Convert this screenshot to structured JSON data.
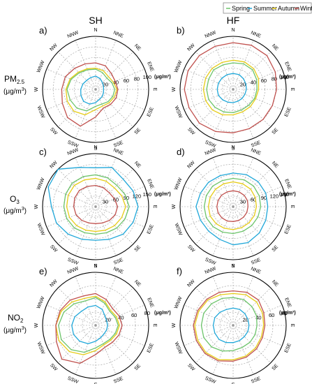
{
  "legend": [
    "Spring",
    "Summer",
    "Autumn",
    "Winter"
  ],
  "colors": {
    "Spring": "#6cc46a",
    "Summer": "#1fa7d9",
    "Autumn": "#e6cc16",
    "Winter": "#c0504d",
    "grid": "#9a9a9a",
    "frame": "#000000"
  },
  "columns": [
    "SH",
    "HF"
  ],
  "rows": [
    {
      "base": "PM",
      "sub": "2.5",
      "unit_lead": "(μg/m",
      "unit_sup": "3",
      "unit_tail": ")"
    },
    {
      "base": "O",
      "sub": "3",
      "unit_lead": "(μg/m",
      "unit_sup": "3",
      "unit_tail": ")"
    },
    {
      "base": "NO",
      "sub": "2",
      "unit_lead": "(μg/m",
      "unit_sup": "3",
      "unit_tail": ")"
    }
  ],
  "chart_data": [
    {
      "panel": "a)",
      "type": "polar-line",
      "city": "SH",
      "pollutant": "PM2.5",
      "directions": [
        "N",
        "NNE",
        "NE",
        "ENE",
        "E",
        "ESE",
        "SE",
        "SSE",
        "S",
        "SSW",
        "SW",
        "WSW",
        "W",
        "WNW",
        "NW",
        "NNW"
      ],
      "rmax": 100,
      "rticks": [
        20,
        40,
        60,
        80,
        100
      ],
      "unit_label": "(μg/m³)",
      "series": [
        {
          "name": "Spring",
          "values": [
            38,
            34,
            30,
            33,
            36,
            35,
            33,
            30,
            32,
            44,
            50,
            52,
            54,
            50,
            44,
            40
          ]
        },
        {
          "name": "Summer",
          "values": [
            25,
            22,
            18,
            16,
            15,
            16,
            18,
            20,
            25,
            30,
            32,
            30,
            28,
            26,
            24,
            24
          ]
        },
        {
          "name": "Autumn",
          "values": [
            40,
            38,
            34,
            36,
            40,
            38,
            36,
            34,
            38,
            52,
            58,
            58,
            56,
            52,
            46,
            42
          ]
        },
        {
          "name": "Winter",
          "values": [
            50,
            48,
            42,
            40,
            42,
            42,
            40,
            38,
            52,
            75,
            75,
            68,
            64,
            62,
            56,
            52
          ]
        }
      ]
    },
    {
      "panel": "b)",
      "type": "polar-line",
      "city": "HF",
      "pollutant": "PM2.5",
      "directions": [
        "N",
        "NNE",
        "NE",
        "ENE",
        "E",
        "ESE",
        "SE",
        "SSE",
        "S",
        "SSW",
        "SW",
        "WSW",
        "W",
        "WNW",
        "NW",
        "NNW"
      ],
      "rmax": 100,
      "rticks": [
        20,
        40,
        60,
        80,
        100
      ],
      "unit_label": "(μg/m³)",
      "series": [
        {
          "name": "Spring",
          "values": [
            50,
            52,
            52,
            48,
            45,
            44,
            42,
            42,
            44,
            46,
            48,
            50,
            50,
            50,
            52,
            50
          ]
        },
        {
          "name": "Summer",
          "values": [
            30,
            30,
            28,
            26,
            25,
            24,
            24,
            24,
            25,
            26,
            28,
            30,
            30,
            30,
            30,
            30
          ]
        },
        {
          "name": "Autumn",
          "values": [
            55,
            56,
            55,
            52,
            48,
            46,
            46,
            46,
            48,
            52,
            55,
            56,
            56,
            56,
            56,
            55
          ]
        },
        {
          "name": "Winter",
          "values": [
            88,
            90,
            90,
            86,
            82,
            80,
            80,
            80,
            82,
            86,
            90,
            90,
            92,
            92,
            90,
            88
          ]
        }
      ]
    },
    {
      "panel": "c)",
      "type": "polar-line",
      "city": "SH",
      "pollutant": "O3",
      "directions": [
        "N",
        "NNE",
        "NE",
        "ENE",
        "E",
        "ESE",
        "SE",
        "SSE",
        "S",
        "SSW",
        "SW",
        "WSW",
        "W",
        "WNW",
        "NW",
        "NNW"
      ],
      "rmax": 150,
      "rticks": [
        30,
        60,
        90,
        120,
        150
      ],
      "unit_label": "(μg/m³)",
      "series": [
        {
          "name": "Spring",
          "values": [
            90,
            88,
            85,
            90,
            95,
            90,
            85,
            80,
            78,
            80,
            85,
            88,
            90,
            92,
            94,
            92
          ]
        },
        {
          "name": "Summer",
          "values": [
            110,
            120,
            110,
            115,
            120,
            115,
            110,
            100,
            95,
            100,
            110,
            120,
            125,
            145,
            150,
            120
          ]
        },
        {
          "name": "Autumn",
          "values": [
            80,
            78,
            75,
            80,
            85,
            80,
            76,
            72,
            70,
            72,
            76,
            80,
            82,
            84,
            85,
            82
          ]
        },
        {
          "name": "Winter",
          "values": [
            60,
            58,
            55,
            58,
            62,
            60,
            55,
            50,
            48,
            50,
            55,
            60,
            62,
            64,
            65,
            62
          ]
        }
      ]
    },
    {
      "panel": "d)",
      "type": "polar-line",
      "city": "HF",
      "pollutant": "O3",
      "directions": [
        "N",
        "NNE",
        "NE",
        "ENE",
        "E",
        "ESE",
        "SE",
        "SSE",
        "S",
        "SSW",
        "SW",
        "WSW",
        "W",
        "WNW",
        "NW",
        "NNW"
      ],
      "rmax": 150,
      "rticks": [
        30,
        60,
        90,
        120,
        150
      ],
      "unit_label": "(μg/m³)",
      "series": [
        {
          "name": "Spring",
          "values": [
            80,
            82,
            82,
            80,
            78,
            76,
            75,
            75,
            76,
            78,
            80,
            82,
            82,
            82,
            82,
            80
          ]
        },
        {
          "name": "Summer",
          "values": [
            95,
            98,
            100,
            100,
            98,
            100,
            105,
            110,
            108,
            100,
            98,
            100,
            105,
            100,
            98,
            95
          ]
        },
        {
          "name": "Autumn",
          "values": [
            70,
            70,
            70,
            68,
            66,
            65,
            64,
            64,
            65,
            66,
            68,
            70,
            70,
            70,
            70,
            70
          ]
        },
        {
          "name": "Winter",
          "values": [
            45,
            45,
            45,
            44,
            42,
            42,
            42,
            42,
            42,
            44,
            45,
            46,
            46,
            46,
            46,
            45
          ]
        }
      ]
    },
    {
      "panel": "e)",
      "type": "polar-line",
      "city": "SH",
      "pollutant": "NO2",
      "directions": [
        "N",
        "NNE",
        "NE",
        "ENE",
        "E",
        "ESE",
        "SE",
        "SSE",
        "S",
        "SSW",
        "SW",
        "WSW",
        "W",
        "WNW",
        "NW",
        "NNW"
      ],
      "rmax": 80,
      "rticks": [
        20,
        40,
        60,
        80
      ],
      "unit_label": "(μg/m³)",
      "series": [
        {
          "name": "Spring",
          "values": [
            42,
            36,
            30,
            32,
            34,
            32,
            30,
            30,
            34,
            44,
            52,
            56,
            56,
            52,
            46,
            40
          ]
        },
        {
          "name": "Summer",
          "values": [
            30,
            26,
            20,
            18,
            18,
            18,
            18,
            20,
            24,
            30,
            34,
            36,
            36,
            34,
            30,
            30
          ]
        },
        {
          "name": "Autumn",
          "values": [
            44,
            38,
            32,
            34,
            36,
            34,
            32,
            32,
            38,
            48,
            56,
            60,
            60,
            56,
            50,
            44
          ]
        },
        {
          "name": "Winter",
          "values": [
            48,
            42,
            36,
            38,
            40,
            38,
            36,
            36,
            44,
            62,
            72,
            64,
            60,
            58,
            54,
            48
          ]
        }
      ]
    },
    {
      "panel": "f)",
      "type": "polar-line",
      "city": "HF",
      "pollutant": "NO2",
      "directions": [
        "N",
        "NNE",
        "NE",
        "ENE",
        "E",
        "ESE",
        "SE",
        "SSE",
        "S",
        "SSW",
        "SW",
        "WSW",
        "W",
        "WNW",
        "NW",
        "NNW"
      ],
      "rmax": 80,
      "rticks": [
        20,
        40,
        60,
        80
      ],
      "unit_label": "(μg/m³)",
      "series": [
        {
          "name": "Spring",
          "values": [
            42,
            42,
            40,
            38,
            36,
            36,
            36,
            36,
            38,
            42,
            46,
            48,
            48,
            48,
            46,
            44
          ]
        },
        {
          "name": "Summer",
          "values": [
            26,
            26,
            25,
            24,
            24,
            24,
            24,
            25,
            26,
            28,
            30,
            30,
            30,
            30,
            28,
            26
          ]
        },
        {
          "name": "Autumn",
          "values": [
            48,
            50,
            50,
            48,
            46,
            46,
            48,
            50,
            52,
            56,
            58,
            58,
            58,
            56,
            54,
            50
          ]
        },
        {
          "name": "Winter",
          "values": [
            52,
            54,
            54,
            50,
            48,
            48,
            50,
            52,
            54,
            58,
            60,
            60,
            60,
            58,
            56,
            54
          ]
        }
      ]
    }
  ]
}
